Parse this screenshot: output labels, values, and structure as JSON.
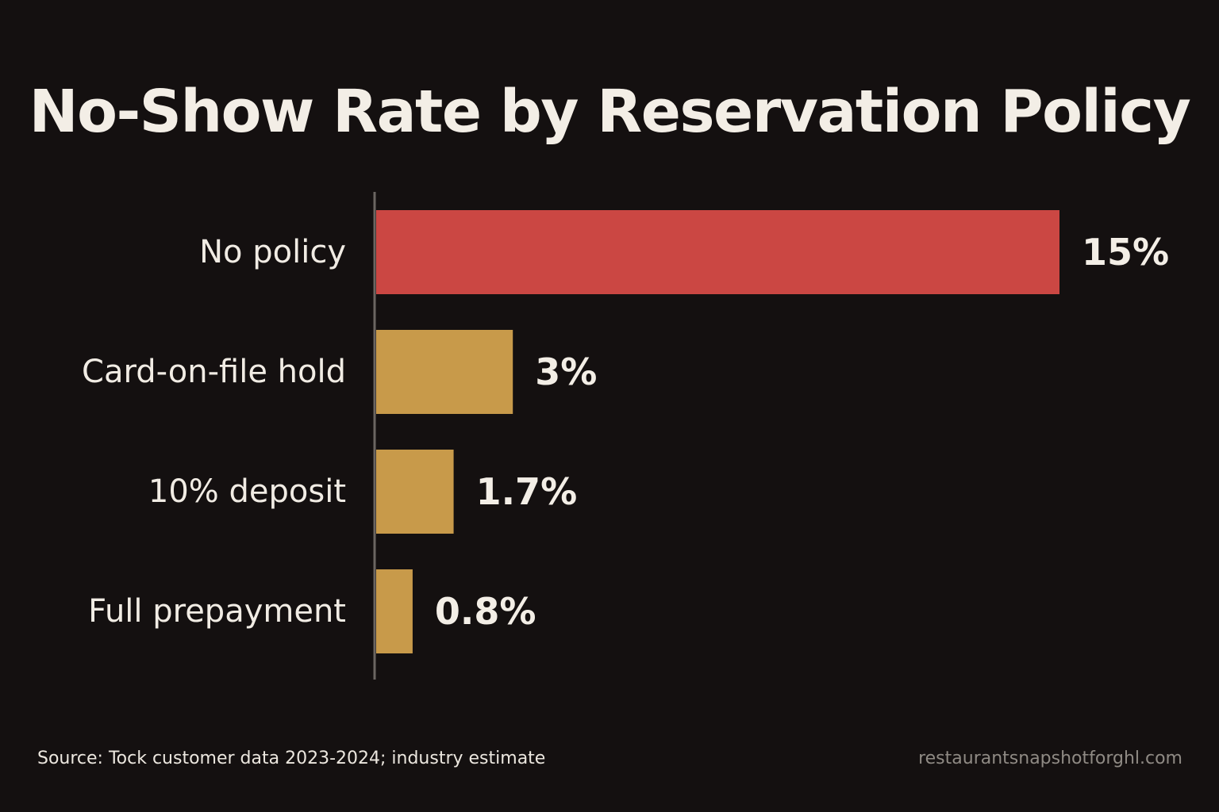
{
  "chart_data": {
    "type": "bar",
    "orientation": "horizontal",
    "title": "No-Show Rate by Reservation Policy",
    "categories": [
      "No policy",
      "Card-on-file hold",
      "10% deposit",
      "Full prepayment"
    ],
    "values": [
      15,
      3,
      1.7,
      0.8
    ],
    "value_labels": [
      "15%",
      "3%",
      "1.7%",
      "0.8%"
    ],
    "unit": "%",
    "bar_colors": [
      "#cb4743",
      "#c89a4a",
      "#c89a4a",
      "#c89a4a"
    ],
    "xlim": [
      0,
      15
    ],
    "grid": false,
    "legend": "none"
  },
  "footer": {
    "source": "Source: Tock customer data 2023-2024; industry estimate",
    "site": "restaurantsnapshotforghl.com"
  },
  "colors": {
    "background": "#141010",
    "highlight_bar": "#cb4743",
    "bar": "#c89a4a",
    "text": "#f1ece4",
    "muted_text": "#8f8a84",
    "axis": "#6b6662"
  }
}
